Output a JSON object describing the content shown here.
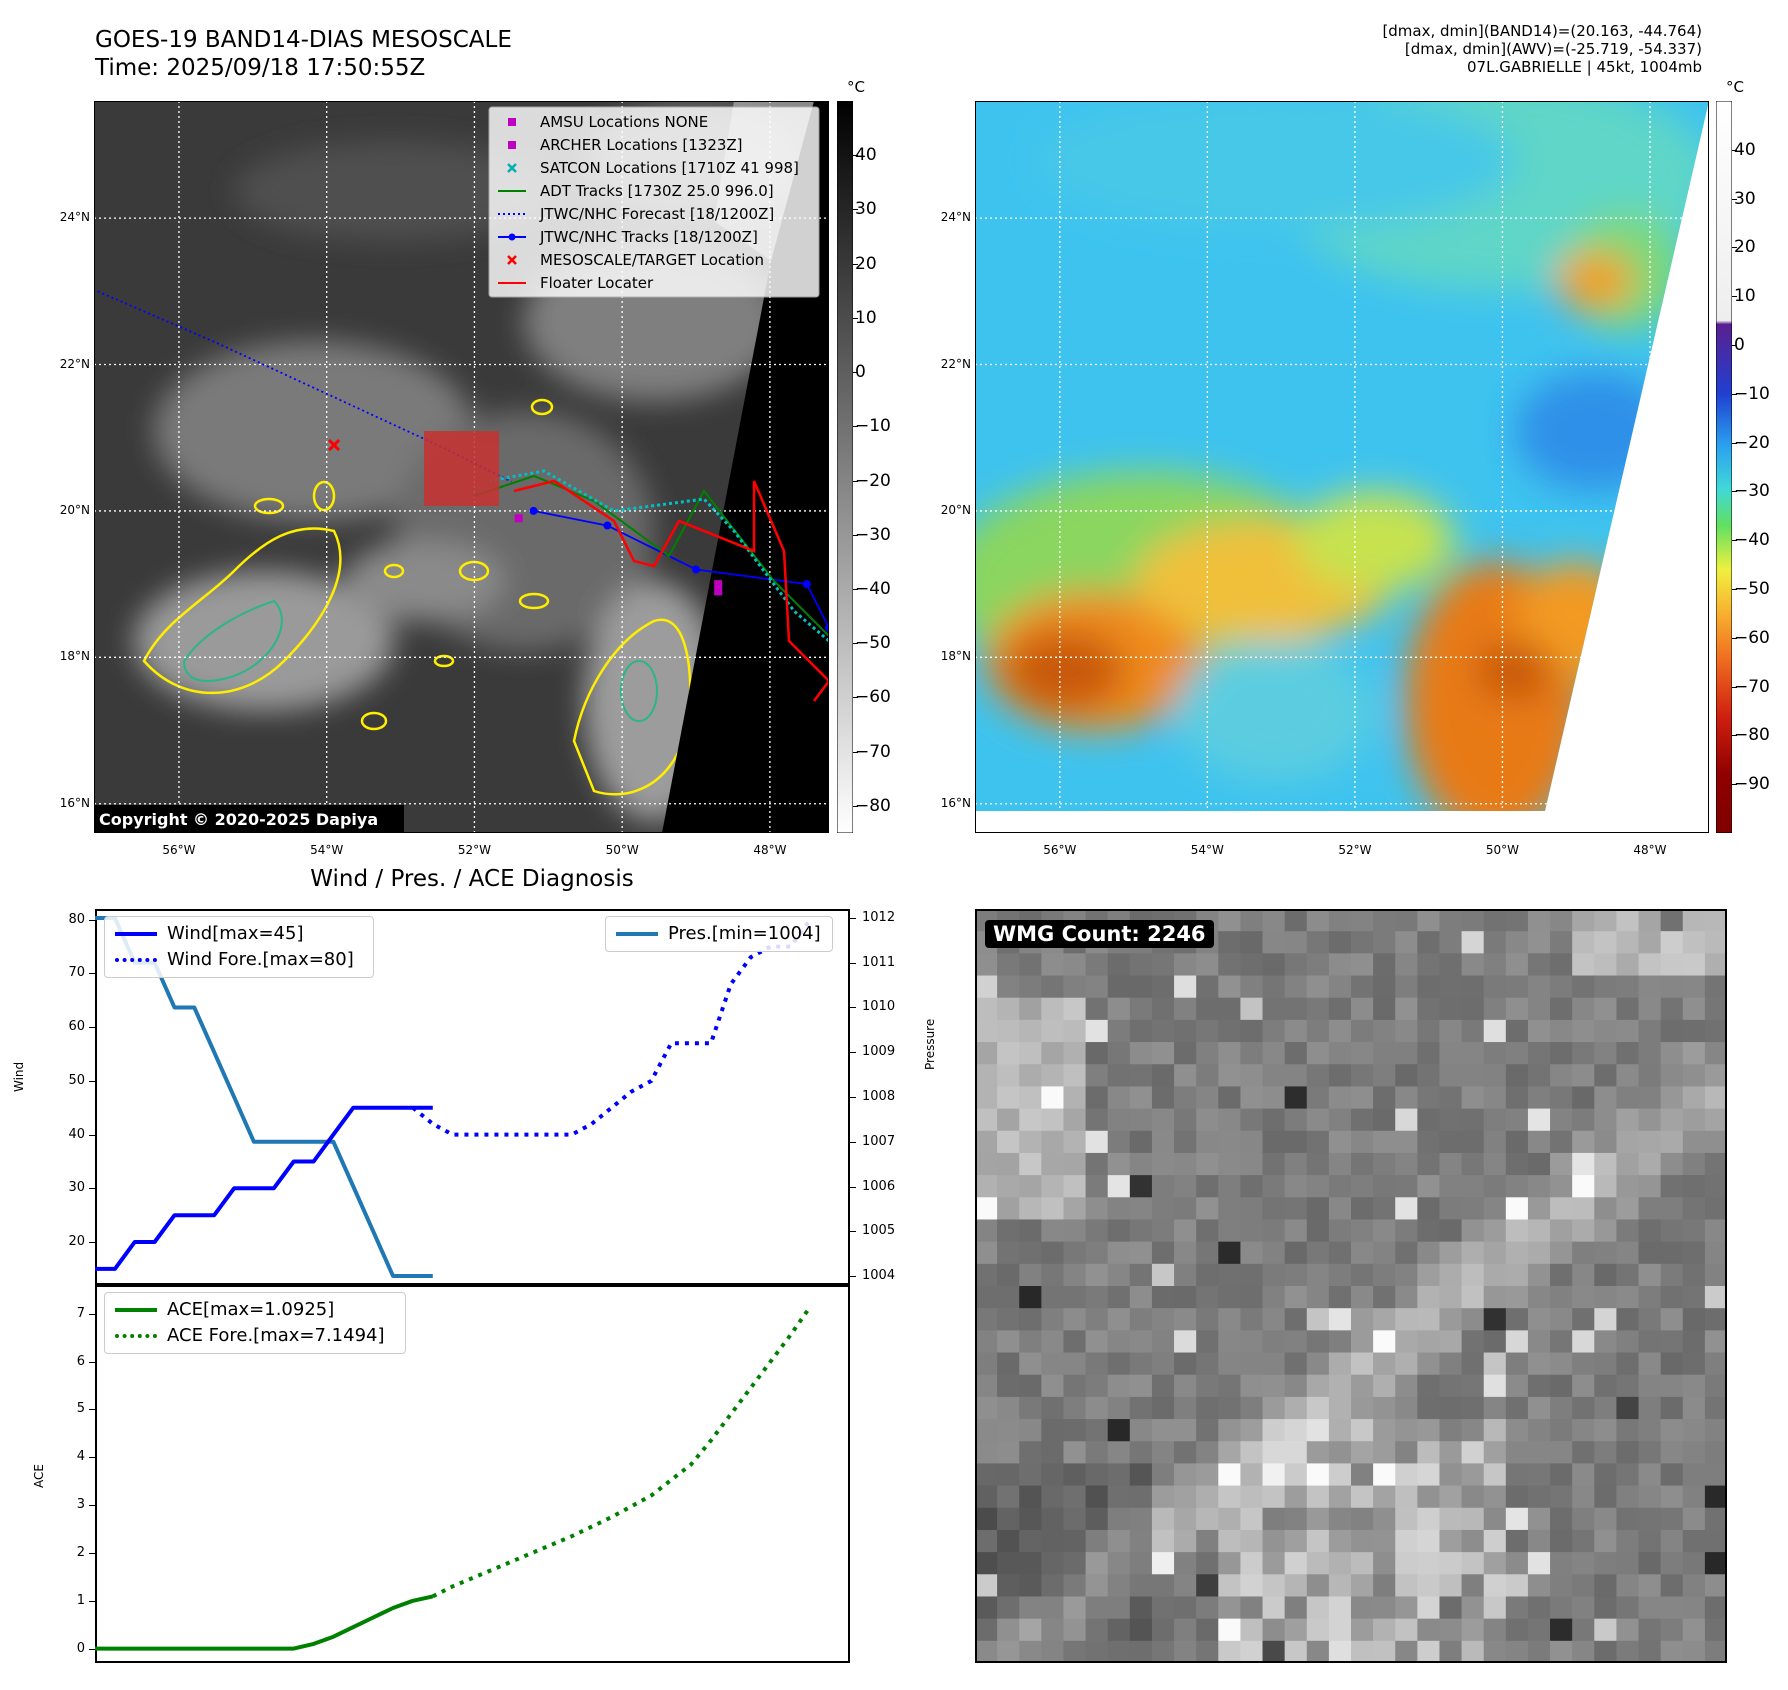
{
  "header": {
    "title_line1": "GOES-19 BAND14-DIAS MESOSCALE",
    "title_line2": "Time: 2025/09/18 17:50:55Z",
    "info_line1": "[dmax, dmin](BAND14)=(20.163, -44.764)",
    "info_line2": "[dmax, dmin](AWV)=(-25.719, -54.337)",
    "info_line3": "07L.GABRIELLE | 45kt, 1004mb"
  },
  "map": {
    "lat_labels": [
      "24°N",
      "22°N",
      "20°N",
      "18°N",
      "16°N"
    ],
    "lat_values": [
      24,
      22,
      20,
      18,
      16
    ],
    "lon_labels": [
      "56°W",
      "54°W",
      "52°W",
      "50°W",
      "48°W"
    ],
    "lon_values": [
      -56,
      -54,
      -52,
      -50,
      -48
    ],
    "extent": {
      "lon_min": -57.15,
      "lon_max": -47.2,
      "lat_min": 15.6,
      "lat_max": 25.6
    },
    "copyright": "Copyright © 2020-2025 Dapiya",
    "legend": [
      {
        "label": "AMSU Locations NONE",
        "marker": "square",
        "color": "#c000c0"
      },
      {
        "label": "ARCHER Locations [1323Z]",
        "marker": "square",
        "color": "#c000c0"
      },
      {
        "label": "SATCON Locations [1710Z 41 998]",
        "marker": "x",
        "color": "#00b0b0"
      },
      {
        "label": "ADT Tracks [1730Z 25.0 996.0]",
        "marker": "line",
        "color": "#007f00"
      },
      {
        "label": "JTWC/NHC Forecast [18/1200Z]",
        "marker": "dotted",
        "color": "#0000ff"
      },
      {
        "label": "JTWC/NHC Tracks [18/1200Z]",
        "marker": "line-dot",
        "color": "#0000ff"
      },
      {
        "label": "MESOSCALE/TARGET Location",
        "marker": "x",
        "color": "#ff0000"
      },
      {
        "label": "Floater Locater",
        "marker": "line",
        "color": "#ff0000"
      }
    ],
    "forecast_track": [
      [
        -57.1,
        23.0
      ],
      [
        -55.5,
        22.3
      ],
      [
        -54.0,
        21.6
      ],
      [
        -52.5,
        20.9
      ],
      [
        -51.5,
        20.4
      ]
    ],
    "best_track": [
      [
        -51.2,
        20.0
      ],
      [
        -50.2,
        19.8
      ],
      [
        -49.0,
        19.2
      ],
      [
        -47.5,
        19.0
      ],
      [
        -47.2,
        18.4
      ]
    ],
    "target_location": [
      -53.9,
      20.9
    ],
    "archer_points": [
      [
        -51.4,
        19.9
      ],
      [
        -48.7,
        19.0
      ],
      [
        -48.7,
        18.9
      ]
    ],
    "colorbar_gray": {
      "unit": "°C",
      "ticks": [
        40,
        30,
        20,
        10,
        0,
        -10,
        -20,
        -30,
        -40,
        -50,
        -60,
        -70,
        -80
      ]
    },
    "colorbar_color": {
      "unit": "°C",
      "ticks": [
        40,
        30,
        20,
        10,
        0,
        -10,
        -20,
        -30,
        -40,
        -50,
        -60,
        -70,
        -80,
        -90
      ]
    }
  },
  "diagnosis": {
    "title": "Wind / Pres. / ACE Diagnosis",
    "wind_ylabel": "Wind",
    "pres_ylabel": "Pressure",
    "ace_ylabel": "ACE",
    "wind_ticks": [
      20,
      30,
      40,
      50,
      60,
      70,
      80
    ],
    "pres_ticks": [
      1004,
      1005,
      1006,
      1007,
      1008,
      1009,
      1010,
      1011,
      1012
    ],
    "ace_ticks": [
      0,
      1,
      2,
      3,
      4,
      5,
      6,
      7
    ],
    "legend_wind": "Wind[max=45]",
    "legend_wind_fore": "Wind Fore.[max=80]",
    "legend_pres": "Pres.[min=1004]",
    "legend_ace": "ACE[max=1.0925]",
    "legend_ace_fore": "ACE Fore.[max=7.1494]",
    "wmg_label": "WMG Count: 2246"
  },
  "chart_data": [
    {
      "type": "line",
      "title": "Wind / Pres. / ACE Diagnosis",
      "ylabel": "Wind",
      "ylim": [
        12,
        82
      ],
      "xlim": [
        0,
        38
      ],
      "series": [
        {
          "name": "Wind[max=45]",
          "style": "solid",
          "color": "#0000ff",
          "x": [
            0,
            1,
            2,
            3,
            4,
            5,
            6,
            7,
            8,
            9,
            10,
            11,
            12,
            13,
            14,
            15,
            16,
            17
          ],
          "y": [
            15,
            15,
            20,
            20,
            25,
            25,
            25,
            30,
            30,
            30,
            35,
            35,
            40,
            45,
            45,
            45,
            45,
            45
          ]
        },
        {
          "name": "Wind Fore.[max=80]",
          "style": "dotted",
          "color": "#0000ff",
          "x": [
            16,
            17,
            18,
            19,
            20,
            21,
            22,
            23,
            24,
            25,
            26,
            27,
            28,
            29,
            30,
            31,
            32,
            33,
            34,
            35,
            36
          ],
          "y": [
            45,
            42,
            40,
            40,
            40,
            40,
            40,
            40,
            40,
            42,
            45,
            48,
            50,
            57,
            57,
            57,
            68,
            73,
            75,
            75,
            80
          ]
        }
      ]
    },
    {
      "type": "line",
      "ylabel": "Pressure",
      "ylim": [
        1003.8,
        1012.2
      ],
      "xlim": [
        0,
        38
      ],
      "series": [
        {
          "name": "Pres.[min=1004]",
          "style": "solid",
          "color": "#1f77b4",
          "x": [
            0,
            1,
            2,
            3,
            4,
            5,
            6,
            7,
            8,
            9,
            10,
            11,
            12,
            13,
            14,
            15,
            16,
            17
          ],
          "y": [
            1012,
            1012,
            1011,
            1011,
            1010,
            1010,
            1009,
            1008,
            1007,
            1007,
            1007,
            1007,
            1007,
            1006,
            1005,
            1004,
            1004,
            1004
          ]
        }
      ]
    },
    {
      "type": "line",
      "ylabel": "ACE",
      "ylim": [
        -0.3,
        7.6
      ],
      "xlim": [
        0,
        38
      ],
      "series": [
        {
          "name": "ACE[max=1.0925]",
          "style": "solid",
          "color": "#008000",
          "x": [
            0,
            2,
            4,
            6,
            8,
            10,
            11,
            12,
            13,
            14,
            15,
            16,
            17
          ],
          "y": [
            0,
            0,
            0,
            0,
            0,
            0,
            0.1,
            0.25,
            0.45,
            0.65,
            0.85,
            1.0,
            1.0925
          ]
        },
        {
          "name": "ACE Fore.[max=7.1494]",
          "style": "dotted",
          "color": "#008000",
          "x": [
            17,
            18,
            20,
            22,
            24,
            26,
            28,
            30,
            31,
            32,
            33,
            34,
            35,
            36
          ],
          "y": [
            1.0925,
            1.3,
            1.65,
            2.0,
            2.35,
            2.75,
            3.2,
            3.85,
            4.35,
            4.9,
            5.45,
            6.0,
            6.55,
            7.1494
          ]
        }
      ]
    }
  ]
}
